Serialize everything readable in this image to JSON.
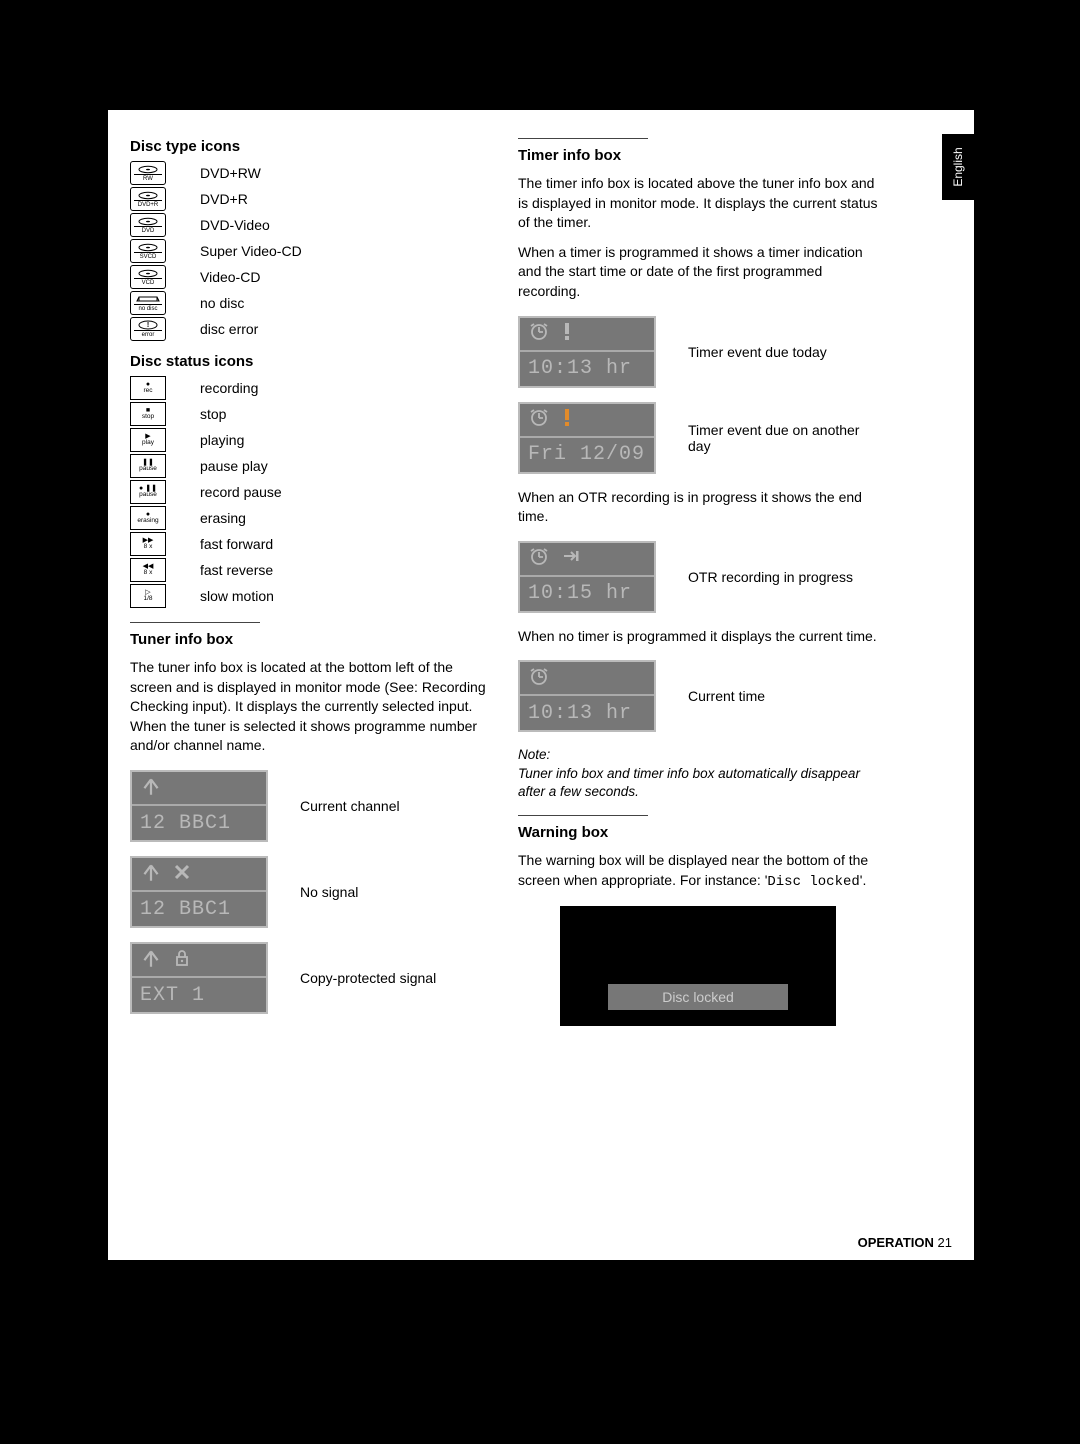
{
  "language_tab": "English",
  "footer": {
    "label": "OPERATION",
    "page": "21"
  },
  "left": {
    "disc_type_header": "Disc type icons",
    "disc_types": [
      {
        "icon": "disc",
        "sub": "RW",
        "label": "DVD+RW"
      },
      {
        "icon": "disc",
        "sub": "DVD+R",
        "label": "DVD+R"
      },
      {
        "icon": "disc",
        "sub": "DVD",
        "label": "DVD-Video"
      },
      {
        "icon": "disc",
        "sub": "SVCD",
        "label": "Super Video-CD"
      },
      {
        "icon": "disc",
        "sub": "VCD",
        "label": "Video-CD"
      },
      {
        "icon": "tray",
        "sub": "no disc",
        "label": "no disc"
      },
      {
        "icon": "error",
        "sub": "error",
        "label": "disc error"
      }
    ],
    "disc_status_header": "Disc status icons",
    "disc_status": [
      {
        "glyph": "●",
        "sub": "rec",
        "label": "recording"
      },
      {
        "glyph": "■",
        "sub": "stop",
        "label": "stop"
      },
      {
        "glyph": "▶",
        "sub": "play",
        "label": "playing"
      },
      {
        "glyph": "❚❚",
        "sub": "pause",
        "label": "pause play"
      },
      {
        "glyph": "● ❚❚",
        "sub": "pause",
        "label": "record pause"
      },
      {
        "glyph": "●",
        "sub": "erasing",
        "label": "erasing"
      },
      {
        "glyph": "▶▶",
        "sub": "8 x",
        "label": "fast forward"
      },
      {
        "glyph": "◀◀",
        "sub": "8 x",
        "label": "fast reverse"
      },
      {
        "glyph": "▷",
        "sub": "1/8",
        "label": "slow motion"
      }
    ],
    "tuner_header": "Tuner info box",
    "tuner_body": "The tuner info box is located at the bottom left of the screen and is displayed in monitor mode (See: Recording Checking input). It displays the currently selected input. When the tuner is selected it shows programme number and/or channel name.",
    "tuner_panels": [
      {
        "icons": [
          "antenna"
        ],
        "text": "12 BBC1",
        "caption": "Current channel"
      },
      {
        "icons": [
          "antenna",
          "cross"
        ],
        "text": "12 BBC1",
        "caption": "No signal"
      },
      {
        "icons": [
          "antenna",
          "lock"
        ],
        "text": "EXT 1",
        "caption": "Copy-protected signal"
      }
    ]
  },
  "right": {
    "timer_header": "Timer info box",
    "timer_body1": "The timer info box is located above the tuner info box and is displayed in monitor mode. It displays the current status of the timer.",
    "timer_body2": "When a timer is programmed it shows a timer indication and the start time or date of the first programmed recording.",
    "timer_panels_a": [
      {
        "icons": [
          "clock",
          "alert"
        ],
        "text": "10:13 hr",
        "caption": "Timer event due today"
      },
      {
        "icons": [
          "clock",
          "alert-orange"
        ],
        "text": "Fri 12/09",
        "caption": "Timer event due on another day"
      }
    ],
    "timer_body3": "When an OTR recording is in progress it shows the end time.",
    "timer_panel_b": {
      "icons": [
        "clock",
        "skip"
      ],
      "text": "10:15 hr",
      "caption": "OTR recording in progress"
    },
    "timer_body4": "When no timer is programmed it displays the current time.",
    "timer_panel_c": {
      "icons": [
        "clock"
      ],
      "text": "10:13 hr",
      "caption": "Current time"
    },
    "note_label": "Note:",
    "note_body": "Tuner info box and timer info box automatically disappear after a few seconds.",
    "warning_header": "Warning box",
    "warning_body_pre": "The warning box will be displayed near the bottom of the screen when appropriate. For instance: '",
    "warning_body_lock": "Disc locked",
    "warning_body_post": "'.",
    "warning_bar": "Disc locked"
  }
}
